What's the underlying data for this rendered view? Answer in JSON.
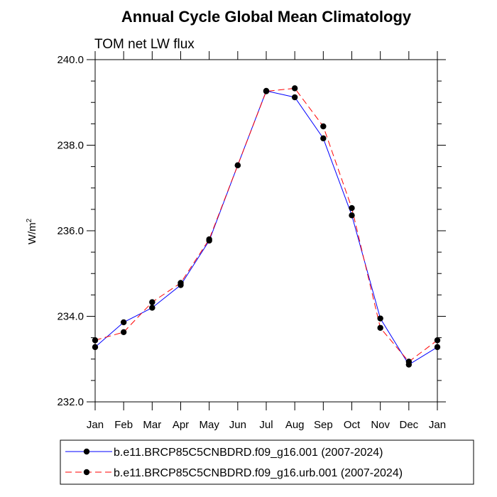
{
  "chart_data": {
    "type": "line",
    "title": "Annual Cycle Global Mean Climatology",
    "subtitle": "TOM net LW flux",
    "xlabel": "",
    "ylabel": "W/m",
    "ylabel_superscript": "2",
    "categories": [
      "Jan",
      "Feb",
      "Mar",
      "Apr",
      "May",
      "Jun",
      "Jul",
      "Aug",
      "Sep",
      "Oct",
      "Nov",
      "Dec",
      "Jan"
    ],
    "ylim": [
      232.0,
      240.0
    ],
    "yticks": [
      232.0,
      234.0,
      236.0,
      238.0,
      240.0
    ],
    "ytick_labels": [
      "232.0",
      "234.0",
      "236.0",
      "238.0",
      "240.0"
    ],
    "grid": false,
    "legend_position": "bottom",
    "series": [
      {
        "name": "b.e11.BRCP85C5CNBDRD.f09_g16.001 (2007-2024)",
        "color": "#0000ff",
        "line_style": "solid",
        "values": [
          233.28,
          233.86,
          234.2,
          234.73,
          235.77,
          237.53,
          239.27,
          239.12,
          238.16,
          236.36,
          233.95,
          232.87,
          233.28
        ]
      },
      {
        "name": "b.e11.BRCP85C5CNBDRD.f09_g16.urb.001 (2007-2024)",
        "color": "#ff0000",
        "line_style": "dashed",
        "values": [
          233.44,
          233.63,
          234.33,
          234.78,
          235.8,
          237.53,
          239.26,
          239.33,
          238.44,
          236.53,
          233.73,
          232.94,
          233.44
        ]
      }
    ]
  }
}
